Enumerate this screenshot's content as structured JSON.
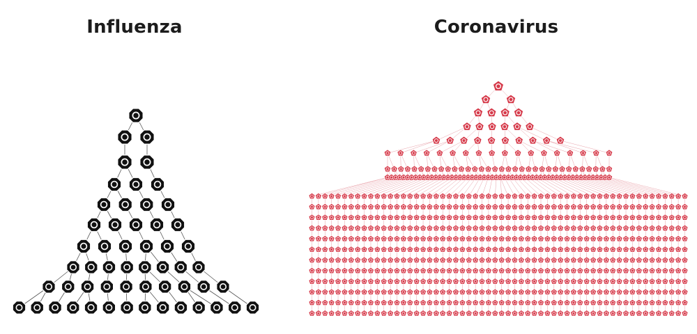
{
  "panels": [
    {
      "title": "Influenza",
      "color": "#111111",
      "icon": "virus-icon",
      "generation_sizes": [
        1,
        2,
        2,
        3,
        4,
        5,
        6,
        8,
        10,
        14
      ]
    },
    {
      "title": "Coronavirus",
      "color": "#d63a4a",
      "icon": "virus-icon",
      "generation_sizes": [
        1,
        2,
        4,
        6,
        10,
        18,
        34,
        56,
        58,
        58,
        58,
        58,
        58,
        58,
        58,
        58,
        58,
        58,
        58,
        58
      ]
    }
  ]
}
